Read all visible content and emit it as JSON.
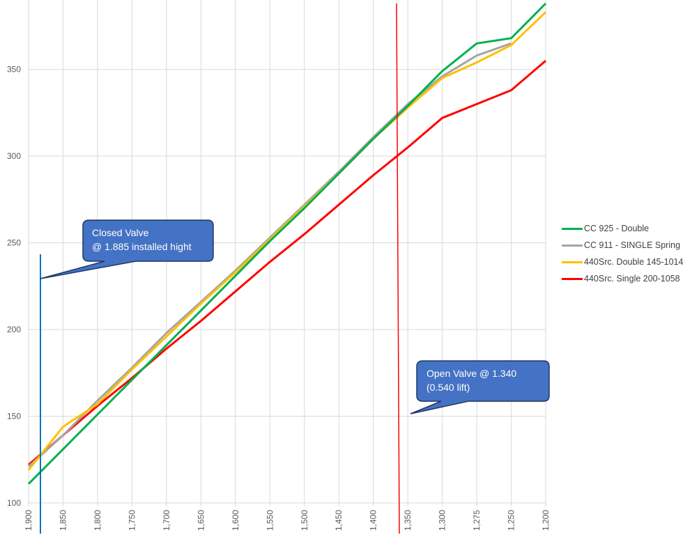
{
  "chart_data": {
    "type": "line",
    "title": "",
    "xlabel": "",
    "ylabel": "",
    "categories": [
      "1,900",
      "1,850",
      "1,800",
      "1,750",
      "1,700",
      "1,650",
      "1,600",
      "1,550",
      "1,500",
      "1,450",
      "1,400",
      "1,350",
      "1,300",
      "1,275",
      "1,250",
      "1,200"
    ],
    "ylim": [
      100,
      390
    ],
    "yticks": [
      "100",
      "150",
      "200",
      "250",
      "300",
      "350"
    ],
    "grid": true,
    "legend_position": "right",
    "series": [
      {
        "name": "CC 925 - Double",
        "color": "#00B050",
        "values": [
          111,
          131,
          151,
          171,
          191,
          211,
          231,
          251,
          270,
          290,
          310,
          329,
          349,
          365,
          368,
          388
        ]
      },
      {
        "name": "CC 911 - SINGLE Spring",
        "color": "#A5A5A5",
        "values": [
          121,
          139,
          159,
          178,
          198,
          216,
          234,
          253,
          272,
          291,
          311,
          330,
          346,
          358,
          365,
          null
        ]
      },
      {
        "name": "440Src. Double 145-1014",
        "color": "#FFC000",
        "values": [
          119,
          144,
          157,
          177,
          196,
          215,
          233,
          252,
          271,
          290,
          310,
          328,
          345,
          354,
          364,
          383
        ]
      },
      {
        "name": "440Src. Single 200-1058",
        "color": "#FF0000",
        "values": [
          122,
          139,
          156,
          172,
          189,
          205,
          222,
          239,
          255,
          272,
          289,
          305,
          322,
          330,
          338,
          355
        ]
      }
    ],
    "annotations": [
      {
        "text": "Closed Valve\n@ 1.885 installed hight",
        "marker_line_color": "#0070C0"
      },
      {
        "text": "Open Valve @ 1.340\n(0.540 lift)",
        "marker_line_color": "#FF0000"
      }
    ]
  },
  "legend": {
    "items": [
      {
        "label": "CC 925 - Double",
        "color": "#00B050"
      },
      {
        "label": "CC 911 - SINGLE Spring",
        "color": "#A5A5A5"
      },
      {
        "label": "440Src. Double 145-1014",
        "color": "#FFC000"
      },
      {
        "label": "440Src. Single 200-1058",
        "color": "#FF0000"
      }
    ]
  },
  "callouts": {
    "closed": {
      "line1": "Closed Valve",
      "line2": "@ 1.885 installed hight"
    },
    "open": {
      "line1": "Open Valve @ 1.340",
      "line2": "(0.540 lift)"
    }
  },
  "colors": {
    "callout_fill": "#4472C4",
    "callout_border": "#1F3864",
    "grid": "#D9D9D9"
  }
}
